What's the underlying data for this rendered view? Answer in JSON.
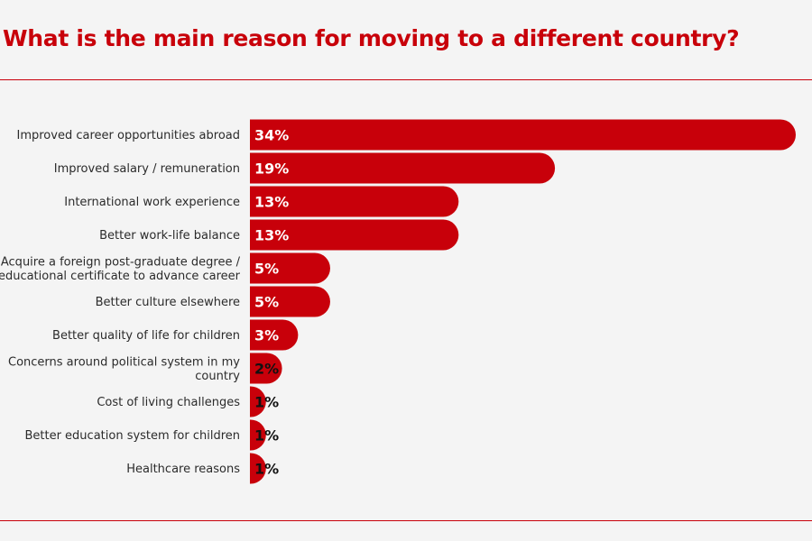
{
  "title": "What is the main reason for moving to a different country?",
  "colors": {
    "accent": "#c8000a",
    "background": "#f4f4f4",
    "label_text": "#2b2b2b"
  },
  "chart_data": {
    "type": "bar",
    "orientation": "horizontal",
    "title": "What is the main reason for moving to a different country?",
    "value_suffix": "%",
    "categories": [
      [
        "Improved career opportunities abroad"
      ],
      [
        "Improved salary / remuneration"
      ],
      [
        "International work experience"
      ],
      [
        "Better work-life balance"
      ],
      [
        "Acquire a foreign post-graduate degree /",
        "educational certificate to advance career"
      ],
      [
        "Better culture elsewhere"
      ],
      [
        "Better quality of life for children"
      ],
      [
        "Concerns around political system in my",
        "country"
      ],
      [
        "Cost of living challenges"
      ],
      [
        "Better education system for children"
      ],
      [
        "Healthcare reasons"
      ]
    ],
    "values": [
      34,
      19,
      13,
      13,
      5,
      5,
      3,
      2,
      1,
      1,
      1
    ],
    "value_labels": [
      "34%",
      "19%",
      "13%",
      "13%",
      "5%",
      "5%",
      "3%",
      "2%",
      "1%",
      "1%",
      "1%"
    ],
    "xlim": [
      0,
      34
    ],
    "grid": false,
    "legend": "none"
  }
}
